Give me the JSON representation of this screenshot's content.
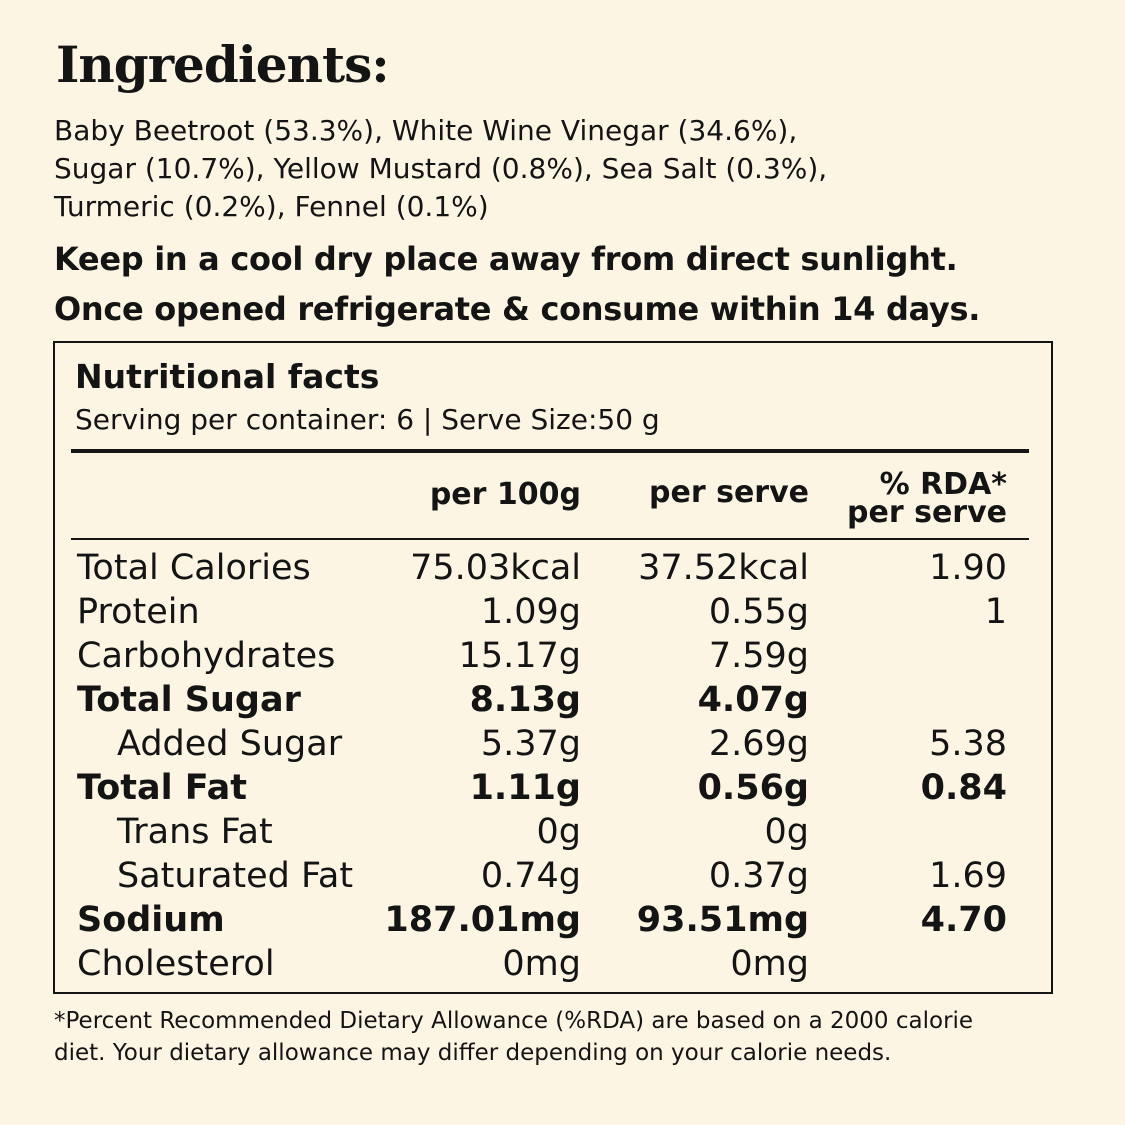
{
  "title": "Ingredients:",
  "ingredients": [
    "Baby Beetroot (53.3%), White Wine Vinegar (34.6%),",
    "Sugar (10.7%), Yellow Mustard (0.8%), Sea Salt (0.3%),",
    "Turmeric (0.2%), Fennel (0.1%)"
  ],
  "storage": [
    "Keep in a cool dry place away from direct sunlight.",
    "Once opened refrigerate & consume within 14 days."
  ],
  "nutrition": {
    "title": "Nutritional facts",
    "serving": "Serving per container: 6 | Serve Size:50 g",
    "headers": {
      "per100": "per 100g",
      "perServe": "per serve",
      "rda_line1": "% RDA*",
      "rda_line2": "per serve"
    },
    "rows": [
      {
        "name": "Total Calories",
        "per100": "75.03kcal",
        "perServe": "37.52kcal",
        "rda": "1.90",
        "bold": false,
        "indent": false
      },
      {
        "name": "Protein",
        "per100": "1.09g",
        "perServe": "0.55g",
        "rda": "1",
        "bold": false,
        "indent": false
      },
      {
        "name": "Carbohydrates",
        "per100": "15.17g",
        "perServe": "7.59g",
        "rda": "",
        "bold": false,
        "indent": false
      },
      {
        "name": "Total Sugar",
        "per100": "8.13g",
        "perServe": "4.07g",
        "rda": "",
        "bold": true,
        "indent": false
      },
      {
        "name": "Added Sugar",
        "per100": "5.37g",
        "perServe": "2.69g",
        "rda": "5.38",
        "bold": false,
        "indent": true
      },
      {
        "name": "Total Fat",
        "per100": "1.11g",
        "perServe": "0.56g",
        "rda": "0.84",
        "bold": true,
        "indent": false
      },
      {
        "name": "Trans Fat",
        "per100": "0g",
        "perServe": "0g",
        "rda": "",
        "bold": false,
        "indent": true
      },
      {
        "name": "Saturated Fat",
        "per100": "0.74g",
        "perServe": "0.37g",
        "rda": "1.69",
        "bold": false,
        "indent": true
      },
      {
        "name": "Sodium",
        "per100": "187.01mg",
        "perServe": "93.51mg",
        "rda": "4.70",
        "bold": true,
        "indent": false
      },
      {
        "name": "Cholesterol",
        "per100": "0mg",
        "perServe": "0mg",
        "rda": "",
        "bold": false,
        "indent": false
      }
    ]
  },
  "footnote": [
    "*Percent Recommended Dietary Allowance (%RDA) are based on a 2000 calorie",
    "diet. Your dietary allowance may differ depending on your calorie needs."
  ]
}
